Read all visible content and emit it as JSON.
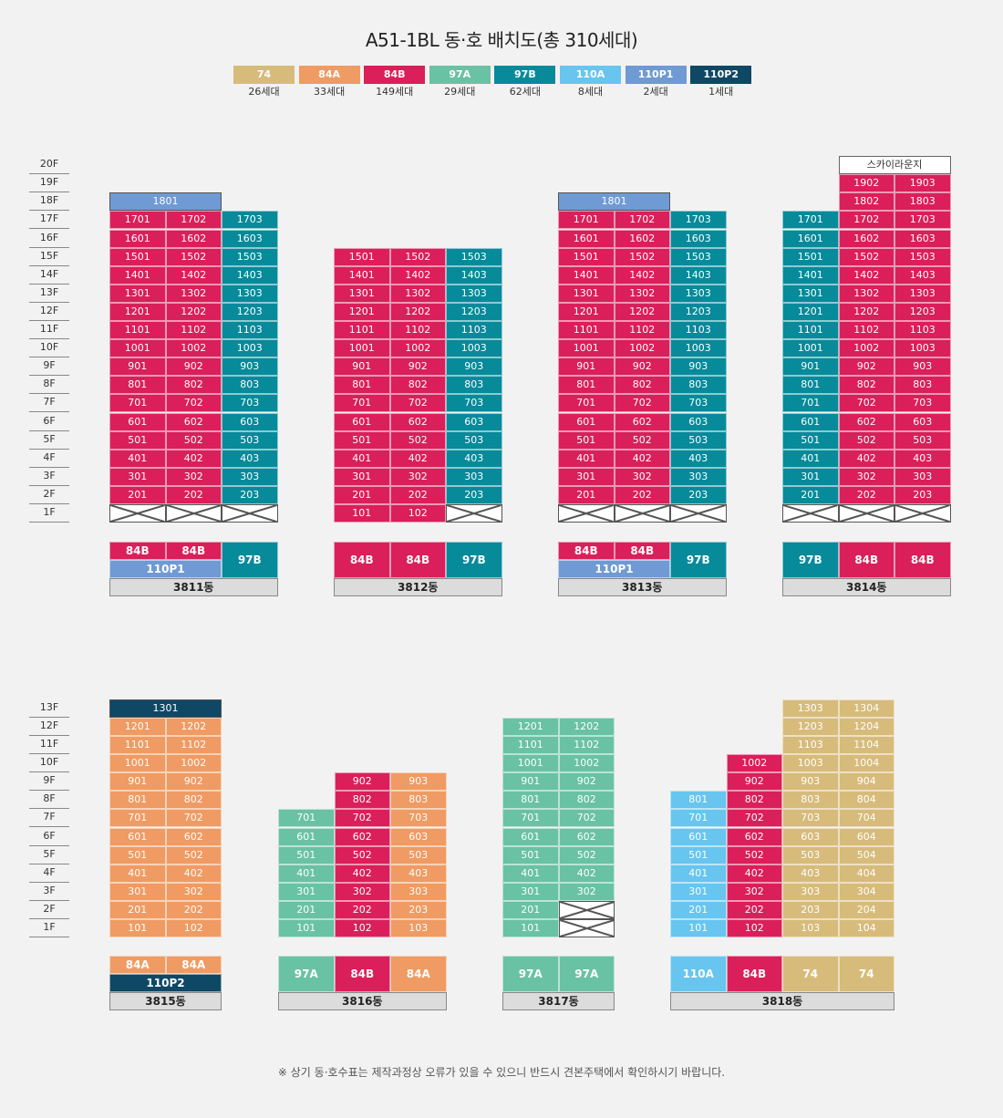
{
  "title": "A51-1BL 동·호 배치도(총 310세대)",
  "note": "※ 상기 동·호수표는 제작과정상 오류가 있을 수 있으니 반드시 견본주택에서 확인하시기 바랍니다.",
  "colors": {
    "74": "#d7bb7b",
    "84A": "#ef9b63",
    "84B": "#da1f5a",
    "97A": "#69c2a3",
    "97B": "#078a9a",
    "110A": "#67c5ef",
    "110P1": "#6f9ad3",
    "110P2": "#0e4865"
  },
  "legend": [
    {
      "type": "74",
      "count": "26세대"
    },
    {
      "type": "84A",
      "count": "33세대"
    },
    {
      "type": "84B",
      "count": "149세대"
    },
    {
      "type": "97A",
      "count": "29세대"
    },
    {
      "type": "97B",
      "count": "62세대"
    },
    {
      "type": "110A",
      "count": "8세대"
    },
    {
      "type": "110P1",
      "count": "2세대"
    },
    {
      "type": "110P2",
      "count": "1세대"
    }
  ],
  "floor_labels_top": [
    "20F",
    "19F",
    "18F",
    "17F",
    "16F",
    "15F",
    "14F",
    "13F",
    "12F",
    "11F",
    "10F",
    "9F",
    "8F",
    "7F",
    "6F",
    "5F",
    "4F",
    "3F",
    "2F",
    "1F"
  ],
  "floor_labels_bottom": [
    "13F",
    "12F",
    "11F",
    "10F",
    "9F",
    "8F",
    "7F",
    "6F",
    "5F",
    "4F",
    "3F",
    "2F",
    "1F"
  ],
  "buildings": [
    {
      "name": "3811동",
      "columns": [
        {
          "type": "84B",
          "top": 17,
          "pilotis": true
        },
        {
          "type": "84B",
          "top": 17,
          "pilotis": true
        },
        {
          "type": "97B",
          "top": 17,
          "pilotis": true
        }
      ],
      "penthouses": [
        {
          "label": "1801",
          "floor": 18,
          "type": "110P1",
          "span": [
            0,
            1
          ]
        }
      ],
      "key": {
        "rows": [
          [
            "84B",
            "84B"
          ],
          [
            "110P1"
          ]
        ],
        "side": [
          "97B"
        ]
      }
    },
    {
      "name": "3812동",
      "columns": [
        {
          "type": "84B",
          "top": 15,
          "pilotis": false
        },
        {
          "type": "84B",
          "top": 15,
          "pilotis": false
        },
        {
          "type": "97B",
          "top": 15,
          "pilotis": true
        }
      ],
      "penthouses": [],
      "key": {
        "rows": [
          [
            "84B",
            "84B",
            "97B"
          ]
        ]
      }
    },
    {
      "name": "3813동",
      "columns": [
        {
          "type": "84B",
          "top": 17,
          "pilotis": true
        },
        {
          "type": "84B",
          "top": 17,
          "pilotis": true
        },
        {
          "type": "97B",
          "top": 17,
          "pilotis": true
        }
      ],
      "penthouses": [
        {
          "label": "1801",
          "floor": 18,
          "type": "110P1",
          "span": [
            0,
            1
          ]
        }
      ],
      "key": {
        "rows": [
          [
            "84B",
            "84B"
          ],
          [
            "110P1"
          ]
        ],
        "side": [
          "97B"
        ]
      }
    },
    {
      "name": "3814동",
      "columns": [
        {
          "type": "97B",
          "top": 17,
          "pilotis": true
        },
        {
          "type": "84B",
          "top": 19,
          "pilotis": true
        },
        {
          "type": "84B",
          "top": 19,
          "pilotis": true
        }
      ],
      "penthouses": [],
      "lounge": {
        "label": "스카이라운지",
        "floor": 20,
        "span": [
          1,
          2
        ]
      },
      "key": {
        "rows": [
          [
            "97B",
            "84B",
            "84B"
          ]
        ]
      }
    },
    {
      "name": "3815동",
      "columns": [
        {
          "type": "84A",
          "top": 12,
          "pilotis": false
        },
        {
          "type": "84A",
          "top": 12,
          "pilotis": false
        }
      ],
      "penthouses": [
        {
          "label": "1301",
          "floor": 13,
          "type": "110P2",
          "span": [
            0,
            1
          ]
        }
      ],
      "key": {
        "rows": [
          [
            "84A",
            "84A"
          ],
          [
            "110P2"
          ]
        ]
      }
    },
    {
      "name": "3816동",
      "columns": [
        {
          "type": "97A",
          "top": 7,
          "pilotis": false
        },
        {
          "type": "84B",
          "top": 9,
          "pilotis": false
        },
        {
          "type": "84A",
          "top": 9,
          "pilotis": false
        }
      ],
      "penthouses": [],
      "key": {
        "rows": [
          [
            "97A",
            "84B",
            "84A"
          ]
        ]
      }
    },
    {
      "name": "3817동",
      "columns": [
        {
          "type": "97A",
          "top": 12,
          "pilotis": false
        },
        {
          "type": "97A",
          "top": 12,
          "pilotis": false,
          "blank_below": 2
        }
      ],
      "penthouses": [],
      "key": {
        "rows": [
          [
            "97A",
            "97A"
          ]
        ]
      }
    },
    {
      "name": "3818동",
      "columns": [
        {
          "type": "110A",
          "top": 8,
          "pilotis": false
        },
        {
          "type": "84B",
          "top": 10,
          "pilotis": false
        },
        {
          "type": "74",
          "top": 13,
          "pilotis": false
        },
        {
          "type": "74",
          "top": 13,
          "pilotis": false
        }
      ],
      "penthouses": [],
      "key": {
        "rows": [
          [
            "110A",
            "84B",
            "74",
            "74"
          ]
        ]
      }
    }
  ]
}
